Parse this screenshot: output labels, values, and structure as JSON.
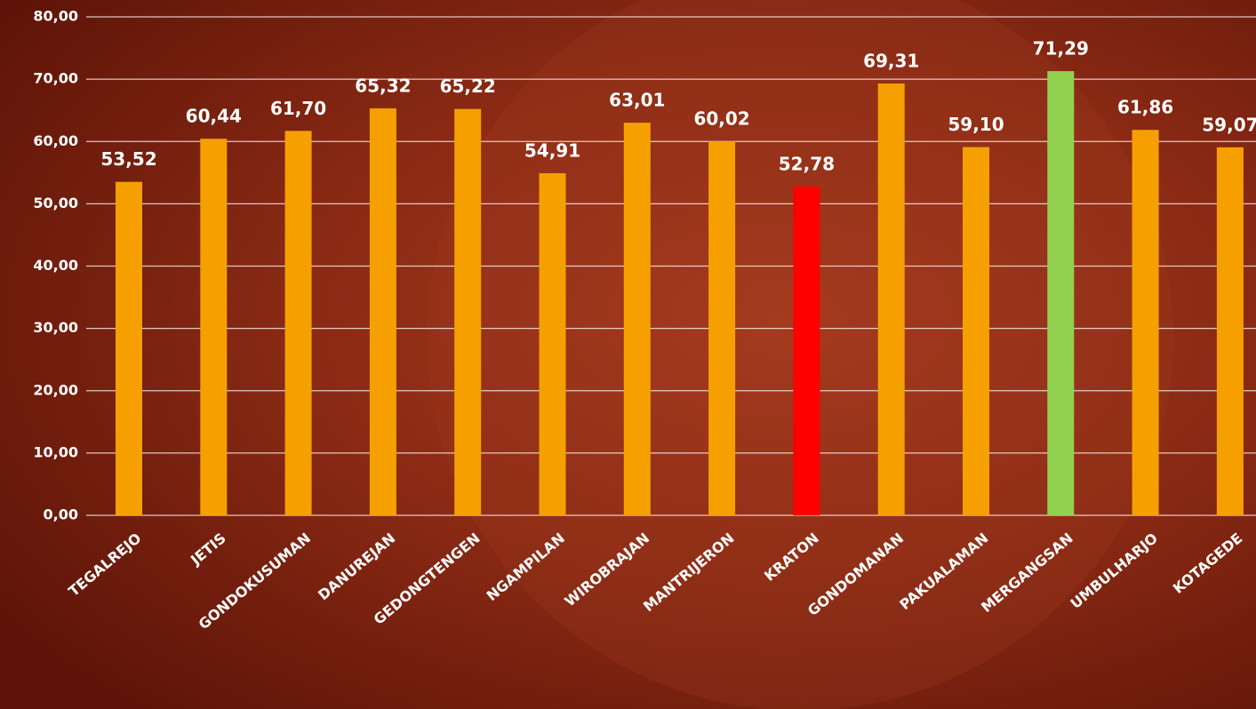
{
  "chart_data": {
    "type": "bar",
    "categories": [
      "TEGALREJO",
      "JETIS",
      "GONDOKUSUMAN",
      "DANUREJAN",
      "GEDONGTENGEN",
      "NGAMPILAN",
      "WIROBRAJAN",
      "MANTRIJERON",
      "KRATON",
      "GONDOMANAN",
      "PAKUALAMAN",
      "MERGANGSAN",
      "UMBULHARJO",
      "KOTAGEDE"
    ],
    "values": [
      53.52,
      60.44,
      61.7,
      65.32,
      65.22,
      54.91,
      63.01,
      60.02,
      52.78,
      69.31,
      59.1,
      71.29,
      61.86,
      59.07
    ],
    "value_labels": [
      "53,52",
      "60,44",
      "61,70",
      "65,32",
      "65,22",
      "54,91",
      "63,01",
      "60,02",
      "52,78",
      "69,31",
      "59,10",
      "71,29",
      "61,86",
      "59,07"
    ],
    "colors": [
      "#f5a000",
      "#f5a000",
      "#f5a000",
      "#f5a000",
      "#f5a000",
      "#f5a000",
      "#f5a000",
      "#f5a000",
      "#ff0000",
      "#f5a000",
      "#f5a000",
      "#92d050",
      "#f5a000",
      "#f5a000"
    ],
    "ylim": [
      0,
      80
    ],
    "yticks": [
      {
        "value": 0,
        "label": "0,00"
      },
      {
        "value": 10,
        "label": "10,00"
      },
      {
        "value": 20,
        "label": "20,00"
      },
      {
        "value": 30,
        "label": "30,00"
      },
      {
        "value": 40,
        "label": "40,00"
      },
      {
        "value": 50,
        "label": "50,00"
      },
      {
        "value": 60,
        "label": "60,00"
      },
      {
        "value": 70,
        "label": "70,00"
      },
      {
        "value": 80,
        "label": "80,00"
      }
    ],
    "grid": true
  }
}
